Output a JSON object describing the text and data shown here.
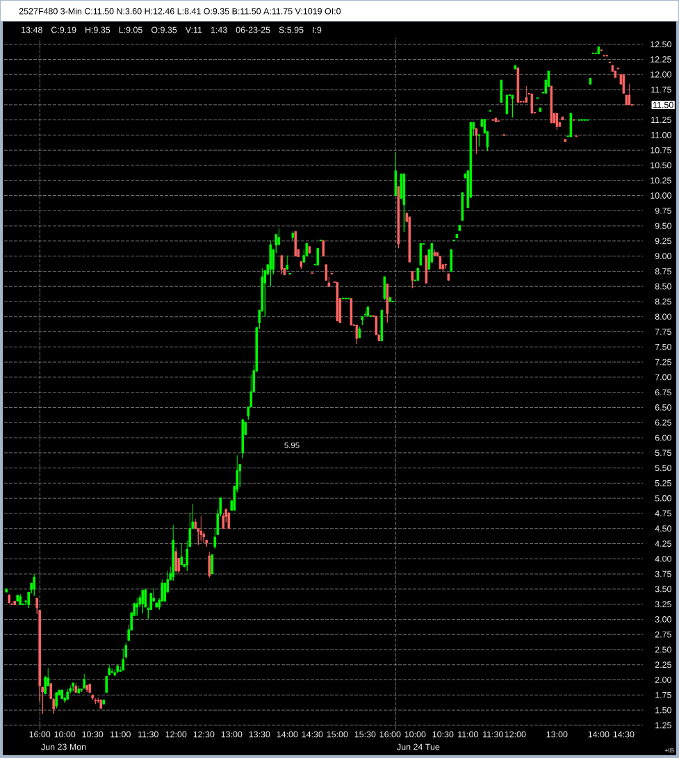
{
  "chart_data": {
    "type": "candlestick",
    "title": "2527F480 3-Min C:11.50 N:3.60 H:12.46 L:8.41 O:9.35 B:11.50 A:11.75 V:1019 OI:0",
    "subtitle": "13:48 C:9.19 H:9.35 L:9.05 O:9.35 V:11 1:43 06-23-25 S:5.95 I:9",
    "categories": [
      null,
      null,
      null,
      null,
      null,
      null,
      null,
      null,
      null,
      null,
      null,
      null,
      "16:00",
      null,
      null,
      null,
      null,
      null,
      null,
      null,
      null,
      "10:00",
      null,
      null,
      null,
      null,
      null,
      null,
      null,
      null,
      null,
      "10:30",
      null,
      null,
      null,
      null,
      null,
      null,
      null,
      null,
      null,
      "11:00",
      null,
      null,
      null,
      null,
      null,
      null,
      null,
      null,
      null,
      "11:30",
      null,
      null,
      null,
      null,
      null,
      null,
      null,
      null,
      null,
      "12:00",
      null,
      null,
      null,
      null,
      null,
      null,
      null,
      null,
      null,
      "12:30",
      null,
      null,
      null,
      null,
      null,
      null,
      null,
      null,
      null,
      "13:00",
      null,
      null,
      null,
      null,
      null,
      null,
      null,
      null,
      null,
      "13:30",
      null,
      null,
      null,
      null,
      null,
      null,
      null,
      null,
      null,
      "14:00",
      null,
      null,
      null,
      null,
      null,
      null,
      null,
      null,
      "14:30",
      null,
      null,
      null,
      null,
      null,
      null,
      null,
      null,
      "15:00",
      null,
      null,
      null,
      null,
      null,
      null,
      null,
      null,
      null,
      "15:30",
      null,
      null,
      null,
      null,
      null,
      null,
      null,
      null,
      "16:00",
      null,
      null,
      null,
      null,
      null,
      null,
      null,
      null,
      "10:00",
      null,
      null,
      null,
      null,
      null,
      null,
      null,
      null,
      null,
      "10:30",
      null,
      null,
      null,
      null,
      null,
      null,
      null,
      null,
      "11:00",
      null,
      null,
      null,
      null,
      null,
      null,
      null,
      null,
      "11:30",
      null,
      null,
      null,
      null,
      null,
      null,
      null,
      "12:00",
      null,
      null,
      null,
      null,
      null,
      null,
      null,
      null,
      null,
      null,
      null,
      null,
      null,
      null,
      "13:00",
      null,
      null,
      null,
      null,
      null,
      null,
      null,
      null,
      null,
      null,
      null,
      null,
      null,
      null,
      "14:00",
      null,
      null,
      null,
      null,
      null,
      null,
      null,
      null,
      "14:30",
      null,
      null,
      null
    ],
    "ohlc": [
      [
        3.45,
        3.5,
        3.45,
        3.5
      ],
      [
        3.4,
        3.42,
        3.27,
        3.27
      ],
      [
        3.25,
        3.25,
        3.25,
        3.25
      ],
      [
        3.3,
        3.3,
        3.24,
        3.24
      ],
      [
        3.3,
        3.4,
        3.3,
        3.4
      ],
      [
        3.24,
        3.42,
        3.24,
        3.38
      ],
      [
        3.25,
        3.25,
        3.25,
        3.25
      ],
      [
        3.3,
        3.3,
        3.24,
        3.3
      ],
      [
        3.24,
        3.45,
        3.19,
        3.45
      ],
      [
        3.49,
        3.6,
        3.43,
        3.6
      ],
      [
        3.5,
        3.75,
        3.39,
        3.7
      ],
      [
        3.35,
        3.35,
        3.09,
        3.19
      ],
      [
        3.15,
        3.15,
        1.64,
        1.9
      ],
      [
        1.88,
        1.88,
        1.44,
        1.8
      ],
      [
        1.77,
        2.06,
        1.77,
        2.05
      ],
      [
        1.9,
        2.2,
        1.9,
        2.03
      ],
      [
        1.94,
        1.94,
        1.69,
        1.69
      ],
      [
        1.68,
        1.7,
        1.44,
        1.52
      ],
      [
        1.57,
        1.79,
        1.53,
        1.79
      ],
      [
        1.75,
        1.84,
        1.75,
        1.83
      ],
      [
        1.69,
        1.84,
        1.69,
        1.83
      ],
      [
        1.66,
        1.72,
        1.62,
        1.7
      ],
      [
        1.68,
        1.85,
        1.68,
        1.8
      ],
      [
        1.81,
        1.91,
        1.78,
        1.86
      ],
      [
        1.9,
        1.95,
        1.81,
        1.95
      ],
      [
        1.9,
        1.95,
        1.79,
        1.79
      ],
      [
        1.78,
        1.9,
        1.78,
        1.85
      ],
      [
        1.83,
        1.85,
        1.8,
        1.85
      ],
      [
        1.86,
        2.1,
        1.86,
        2.01
      ],
      [
        1.91,
        1.91,
        1.8,
        1.84
      ],
      [
        1.93,
        1.93,
        1.79,
        1.79
      ],
      [
        1.75,
        1.75,
        1.67,
        1.7
      ],
      [
        1.66,
        1.7,
        1.6,
        1.66
      ],
      [
        1.66,
        1.71,
        1.62,
        1.66
      ],
      [
        1.67,
        1.67,
        1.53,
        1.53
      ],
      [
        1.6,
        1.67,
        1.6,
        1.67
      ],
      [
        1.79,
        2.06,
        1.79,
        2.06
      ],
      [
        2.08,
        2.24,
        2.08,
        2.19
      ],
      [
        2.13,
        2.19,
        2.11,
        2.13
      ],
      [
        2.08,
        2.18,
        2.06,
        2.12
      ],
      [
        2.14,
        2.25,
        2.11,
        2.23
      ],
      [
        2.14,
        2.22,
        2.14,
        2.16
      ],
      [
        2.16,
        2.51,
        2.16,
        2.34
      ],
      [
        2.38,
        2.62,
        2.35,
        2.57
      ],
      [
        2.65,
        2.91,
        2.65,
        2.83
      ],
      [
        2.82,
        3.11,
        2.82,
        3.11
      ],
      [
        3.06,
        3.28,
        3.06,
        3.26
      ],
      [
        3.2,
        3.35,
        3.06,
        3.26
      ],
      [
        3.25,
        3.41,
        3.2,
        3.36
      ],
      [
        3.26,
        3.48,
        3.1,
        3.48
      ],
      [
        3.2,
        3.51,
        3.2,
        3.49
      ],
      [
        3.16,
        3.21,
        3.01,
        3.18
      ],
      [
        3.16,
        3.43,
        3.16,
        3.43
      ],
      [
        3.3,
        3.51,
        3.3,
        3.35
      ],
      [
        3.2,
        3.28,
        3.2,
        3.27
      ],
      [
        3.2,
        3.35,
        3.16,
        3.32
      ],
      [
        3.3,
        3.66,
        3.3,
        3.6
      ],
      [
        3.3,
        3.6,
        3.3,
        3.6
      ],
      [
        3.45,
        3.8,
        3.45,
        3.66
      ],
      [
        3.65,
        3.87,
        3.65,
        3.76
      ],
      [
        3.7,
        4.56,
        3.64,
        4.31
      ],
      [
        4.12,
        4.19,
        3.78,
        3.8
      ],
      [
        4.01,
        4.01,
        3.76,
        3.8
      ],
      [
        3.9,
        4.26,
        3.9,
        4.03
      ],
      [
        3.87,
        3.91,
        3.86,
        3.91
      ],
      [
        3.9,
        4.3,
        3.8,
        4.16
      ],
      [
        4.2,
        4.76,
        4.2,
        4.5
      ],
      [
        4.5,
        4.91,
        4.5,
        4.61
      ],
      [
        4.61,
        4.66,
        4.5,
        4.5
      ],
      [
        4.5,
        4.5,
        4.23,
        4.45
      ],
      [
        4.46,
        4.71,
        4.3,
        4.4
      ],
      [
        4.41,
        4.46,
        4.26,
        4.36
      ],
      [
        4.31,
        4.31,
        4.2,
        4.26
      ],
      [
        4.05,
        4.12,
        3.69,
        3.72
      ],
      [
        3.75,
        4.07,
        3.75,
        4.07
      ],
      [
        4.2,
        4.51,
        4.17,
        4.36
      ],
      [
        4.4,
        4.82,
        4.4,
        4.74
      ],
      [
        4.74,
        5.01,
        4.7,
        5.01
      ],
      [
        4.71,
        4.76,
        4.5,
        4.5
      ],
      [
        4.82,
        4.82,
        4.6,
        4.7
      ],
      [
        4.76,
        4.76,
        4.5,
        4.5
      ],
      [
        4.8,
        4.96,
        4.8,
        4.96
      ],
      [
        4.8,
        5.2,
        4.8,
        5.2
      ],
      [
        5.15,
        5.71,
        5.1,
        5.46
      ],
      [
        5.45,
        5.56,
        5.19,
        5.56
      ],
      [
        5.75,
        6.3,
        5.66,
        6.3
      ],
      [
        6.05,
        6.26,
        6.05,
        6.26
      ],
      [
        6.36,
        6.51,
        6.3,
        6.51
      ],
      [
        6.51,
        7.04,
        6.51,
        6.76
      ],
      [
        6.76,
        7.21,
        6.76,
        7.11
      ],
      [
        7.1,
        7.82,
        7.1,
        7.82
      ],
      [
        7.9,
        8.11,
        7.8,
        8.11
      ],
      [
        8.09,
        8.8,
        8.09,
        8.66
      ],
      [
        8.55,
        8.76,
        8.0,
        8.76
      ],
      [
        8.7,
        8.86,
        8.7,
        8.86
      ],
      [
        8.78,
        9.26,
        8.5,
        9.19
      ],
      [
        8.78,
        9.11,
        8.7,
        9.11
      ],
      [
        9.18,
        9.36,
        9.05,
        9.36
      ],
      [
        9.19,
        9.46,
        9.19,
        9.31
      ],
      [
        9.01,
        9.01,
        8.7,
        8.78
      ],
      [
        8.8,
        8.8,
        8.69,
        8.69
      ],
      [
        8.78,
        9.01,
        8.78,
        8.85
      ],
      [
        8.71,
        8.71,
        8.71,
        8.71
      ],
      [
        9.31,
        9.41,
        9.26,
        9.38
      ],
      [
        9.41,
        9.41,
        9.0,
        9.0
      ],
      [
        9.11,
        9.11,
        8.99,
        8.99
      ],
      [
        8.91,
        8.91,
        8.79,
        8.83
      ],
      [
        8.9,
        9.11,
        8.9,
        9.01
      ],
      [
        9.0,
        9.21,
        9.0,
        9.21
      ],
      [
        9.16,
        9.16,
        9.05,
        9.05
      ],
      [
        8.72,
        8.72,
        8.72,
        8.72
      ],
      [
        8.86,
        8.86,
        8.86,
        8.86
      ],
      [
        8.85,
        9.13,
        8.85,
        9.13
      ],
      [
        9.26,
        9.26,
        9.26,
        9.26
      ],
      [
        9.26,
        9.26,
        9.0,
        9.0
      ],
      [
        8.86,
        8.86,
        8.6,
        8.6
      ],
      [
        8.56,
        8.66,
        8.5,
        8.5
      ],
      [
        8.71,
        8.71,
        8.71,
        8.71
      ],
      [
        8.57,
        8.57,
        8.57,
        8.57
      ],
      [
        8.57,
        8.57,
        7.93,
        7.93
      ],
      [
        8.3,
        8.3,
        7.9,
        7.9
      ],
      [
        8.3,
        8.3,
        8.3,
        8.3
      ],
      [
        8.3,
        8.3,
        8.3,
        8.3
      ],
      [
        8.3,
        8.3,
        8.3,
        8.3
      ],
      [
        8.3,
        8.3,
        7.86,
        7.86
      ],
      [
        7.86,
        7.86,
        7.86,
        7.86
      ],
      [
        7.86,
        7.86,
        7.55,
        7.64
      ],
      [
        7.65,
        7.84,
        7.65,
        7.8
      ],
      [
        7.95,
        8.0,
        7.86,
        8.0
      ],
      [
        8.03,
        8.09,
        8.03,
        8.03
      ],
      [
        8.01,
        8.16,
        8.01,
        8.16
      ],
      [
        8.01,
        8.01,
        8.01,
        8.01
      ],
      [
        8.01,
        8.01,
        8.01,
        8.01
      ],
      [
        8.01,
        8.01,
        7.7,
        7.7
      ],
      [
        7.7,
        7.7,
        7.6,
        7.6
      ],
      [
        7.6,
        8.11,
        7.6,
        8.11
      ],
      [
        8.3,
        8.66,
        8.28,
        8.66
      ],
      [
        8.54,
        8.54,
        7.9,
        8.05
      ],
      [
        8.25,
        8.32,
        8.25,
        8.32
      ],
      [
        8.25,
        8.25,
        8.25,
        8.25
      ],
      [
        10.0,
        10.71,
        10.0,
        10.41
      ],
      [
        10.15,
        10.15,
        9.13,
        9.2
      ],
      [
        9.95,
        10.36,
        9.95,
        10.36
      ],
      [
        9.85,
        10.36,
        9.4,
        10.36
      ],
      [
        9.71,
        9.71,
        9.57,
        9.57
      ],
      [
        9.65,
        9.65,
        8.9,
        8.9
      ],
      [
        8.75,
        8.75,
        8.47,
        8.6
      ],
      [
        8.6,
        8.6,
        8.6,
        8.6
      ],
      [
        8.6,
        8.8,
        8.6,
        8.8
      ],
      [
        8.85,
        9.21,
        8.85,
        9.21
      ],
      [
        9.2,
        9.2,
        9.2,
        9.2
      ],
      [
        9.01,
        9.01,
        8.55,
        8.55
      ],
      [
        8.78,
        9.11,
        8.78,
        9.11
      ],
      [
        8.9,
        9.21,
        8.9,
        9.21
      ],
      [
        9.06,
        9.11,
        9.01,
        9.01
      ],
      [
        9.06,
        9.06,
        9.0,
        9.0
      ],
      [
        9.0,
        9.0,
        8.79,
        8.79
      ],
      [
        8.86,
        8.86,
        8.75,
        8.79
      ],
      [
        8.86,
        8.86,
        8.79,
        8.86
      ],
      [
        8.71,
        8.71,
        8.6,
        8.6
      ],
      [
        8.75,
        9.11,
        8.75,
        9.11
      ],
      [
        9.26,
        9.26,
        9.26,
        9.26
      ],
      [
        9.3,
        9.36,
        9.3,
        9.36
      ],
      [
        9.42,
        9.51,
        9.42,
        9.51
      ],
      [
        9.59,
        10.05,
        9.59,
        10.05
      ],
      [
        10.29,
        10.36,
        10.29,
        10.36
      ],
      [
        9.8,
        10.41,
        9.8,
        10.41
      ],
      [
        9.97,
        11.21,
        9.97,
        11.21
      ],
      [
        11.1,
        11.21,
        10.99,
        11.21
      ],
      [
        11.11,
        11.11,
        10.69,
        10.99
      ],
      [
        11.0,
        11.0,
        10.81,
        11.0
      ],
      [
        11.14,
        11.26,
        11.14,
        11.26
      ],
      [
        11.03,
        11.26,
        11.03,
        11.26
      ],
      [
        10.8,
        11.06,
        10.74,
        11.06
      ],
      [
        11.4,
        11.4,
        11.4,
        11.4
      ],
      [
        11.25,
        11.25,
        11.25,
        11.25
      ],
      [
        11.28,
        11.28,
        11.22,
        11.22
      ],
      [
        11.23,
        11.23,
        11.23,
        11.23
      ],
      [
        11.54,
        11.91,
        11.54,
        11.91
      ],
      [
        11.0,
        11.0,
        11.0,
        11.0
      ],
      [
        11.35,
        11.66,
        11.35,
        11.66
      ],
      [
        11.66,
        11.66,
        11.66,
        11.66
      ],
      [
        11.6,
        11.66,
        11.29,
        11.66
      ],
      [
        12.09,
        12.15,
        12.09,
        12.15
      ],
      [
        12.11,
        12.11,
        11.54,
        11.54
      ],
      [
        11.55,
        11.55,
        11.55,
        11.55
      ],
      [
        11.55,
        11.55,
        11.55,
        11.55
      ],
      [
        11.62,
        11.81,
        11.54,
        11.54
      ],
      [
        11.68,
        11.68,
        11.68,
        11.68
      ],
      [
        11.68,
        11.68,
        11.36,
        11.36
      ],
      [
        11.37,
        11.37,
        11.37,
        11.37
      ],
      [
        11.61,
        11.61,
        11.61,
        11.61
      ],
      [
        11.39,
        11.45,
        11.39,
        11.45
      ],
      [
        11.7,
        11.7,
        11.7,
        11.7
      ],
      [
        11.69,
        11.91,
        11.69,
        11.91
      ],
      [
        11.8,
        12.06,
        11.8,
        12.06
      ],
      [
        11.81,
        11.81,
        11.2,
        11.2
      ],
      [
        11.36,
        11.36,
        11.2,
        11.2
      ],
      [
        11.36,
        11.36,
        11.09,
        11.14
      ],
      [
        11.21,
        11.21,
        11.14,
        11.14
      ],
      [
        11.3,
        11.3,
        11.25,
        11.25
      ],
      [
        10.93,
        10.93,
        10.89,
        10.89
      ],
      [
        10.98,
        10.98,
        10.98,
        10.98
      ],
      [
        10.97,
        11.36,
        10.97,
        11.36
      ],
      [
        11.25,
        11.25,
        11.25,
        11.25
      ],
      [
        10.98,
        10.98,
        10.98,
        10.98
      ],
      [
        11.25,
        11.25,
        11.25,
        11.25
      ],
      [
        11.25,
        11.25,
        11.25,
        11.25
      ],
      [
        11.25,
        11.25,
        11.25,
        11.25
      ],
      [
        11.25,
        11.25,
        11.25,
        11.25
      ],
      [
        11.84,
        11.94,
        11.84,
        11.94
      ],
      [
        12.35,
        12.35,
        12.35,
        12.35
      ],
      [
        12.35,
        12.35,
        12.35,
        12.35
      ],
      [
        12.34,
        12.46,
        12.34,
        12.46
      ],
      [
        12.4,
        12.4,
        12.4,
        12.4
      ],
      [
        12.31,
        12.31,
        12.31,
        12.31
      ],
      [
        12.31,
        12.31,
        12.31,
        12.31
      ],
      [
        12.2,
        12.2,
        12.2,
        12.2
      ],
      [
        12.15,
        12.15,
        12.05,
        12.05
      ],
      [
        12.06,
        12.06,
        11.95,
        11.95
      ],
      [
        12.1,
        12.1,
        12.1,
        12.1
      ],
      [
        12.0,
        12.0,
        11.84,
        11.84
      ],
      [
        12.0,
        12.0,
        11.69,
        11.69
      ],
      [
        11.66,
        11.66,
        11.5,
        11.5
      ],
      [
        11.66,
        11.85,
        11.5,
        11.5
      ],
      [
        11.5,
        11.5,
        11.5,
        11.5
      ]
    ],
    "colors": [
      "#00ff00",
      "#ff6666",
      "#ff6666",
      "#ff6666",
      "#00ff00",
      "#00ff00",
      "#00ff00",
      "#00ff00",
      "#00ff00",
      "#00ff00",
      "#00ff00",
      "#ff6666",
      "#ff6666",
      "#ff6666",
      "#00ff00",
      "#00ff00",
      "#ff6666",
      "#ff6666",
      "#00ff00",
      "#00ff00",
      "#00ff00",
      "#00ff00",
      "#00ff00",
      "#00ff00",
      "#00ff00",
      "#ff6666",
      "#00ff00",
      "#00ff00",
      "#00ff00",
      "#ff6666",
      "#ff6666",
      "#ff6666",
      "#ff6666",
      "#ff6666",
      "#ff6666",
      "#00ff00",
      "#00ff00",
      "#00ff00",
      "#00ff00",
      "#00ff00",
      "#00ff00",
      "#00ff00",
      "#00ff00",
      "#00ff00",
      "#00ff00",
      "#00ff00",
      "#00ff00",
      "#00ff00",
      "#00ff00",
      "#00ff00",
      "#00ff00",
      "#00ff00",
      "#00ff00",
      "#00ff00",
      "#00ff00",
      "#00ff00",
      "#00ff00",
      "#00ff00",
      "#00ff00",
      "#00ff00",
      "#00ff00",
      "#ff6666",
      "#ff6666",
      "#00ff00",
      "#00ff00",
      "#00ff00",
      "#00ff00",
      "#00ff00",
      "#ff6666",
      "#ff6666",
      "#ff6666",
      "#ff6666",
      "#ff6666",
      "#ff6666",
      "#00ff00",
      "#00ff00",
      "#00ff00",
      "#00ff00",
      "#ff6666",
      "#ff6666",
      "#ff6666",
      "#00ff00",
      "#00ff00",
      "#00ff00",
      "#00ff00",
      "#00ff00",
      "#00ff00",
      "#00ff00",
      "#00ff00",
      "#00ff00",
      "#00ff00",
      "#00ff00",
      "#00ff00",
      "#00ff00",
      "#00ff00",
      "#00ff00",
      "#00ff00",
      "#00ff00",
      "#00ff00",
      "#ff6666",
      "#ff6666",
      "#00ff00",
      "#00ff00",
      "#00ff00",
      "#ff6666",
      "#ff6666",
      "#ff6666",
      "#00ff00",
      "#00ff00",
      "#ff6666",
      "#ff6666",
      "#00ff00",
      "#00ff00",
      "#00ff00",
      "#ff6666",
      "#ff6666",
      "#ff6666",
      "#ff6666",
      "#ff6666",
      "#ff6666",
      "#ff6666",
      "#00ff00",
      "#00ff00",
      "#00ff00",
      "#ff6666",
      "#ff6666",
      "#ff6666",
      "#00ff00",
      "#00ff00",
      "#00ff00",
      "#00ff00",
      "#00ff00",
      "#ff6666",
      "#ff6666",
      "#ff6666",
      "#00ff00",
      "#00ff00",
      "#ff6666",
      "#00ff00",
      "#00ff00",
      "#00ff00",
      "#ff6666",
      "#00ff00",
      "#00ff00",
      "#ff6666",
      "#ff6666",
      "#ff6666",
      "#00ff00",
      "#00ff00",
      "#00ff00",
      "#00ff00",
      "#ff6666",
      "#00ff00",
      "#00ff00",
      "#ff6666",
      "#ff6666",
      "#ff6666",
      "#ff6666",
      "#ff6666",
      "#ff6666",
      "#00ff00",
      "#00ff00",
      "#00ff00",
      "#00ff00",
      "#00ff00",
      "#00ff00",
      "#00ff00",
      "#00ff00",
      "#00ff00",
      "#ff6666",
      "#00ff00",
      "#00ff00",
      "#00ff00",
      "#00ff00",
      "#00ff00",
      "#ff6666",
      "#ff6666",
      "#ff6666",
      "#00ff00",
      "#ff6666",
      "#00ff00",
      "#00ff00",
      "#00ff00",
      "#00ff00",
      "#ff6666",
      "#ff6666",
      "#ff6666",
      "#ff6666",
      "#ff6666",
      "#ff6666",
      "#ff6666",
      "#00ff00",
      "#00ff00",
      "#00ff00",
      "#00ff00",
      "#00ff00",
      "#ff6666",
      "#ff6666",
      "#ff6666",
      "#ff6666",
      "#ff6666",
      "#ff6666",
      "#00ff00",
      "#00ff00",
      "#ff6666",
      "#ff6666",
      "#00ff00",
      "#00ff00",
      "#00ff00",
      "#00ff00",
      "#00ff00",
      "#00ff00",
      "#00ff00",
      "#00ff00",
      "#ff6666",
      "#ff6666",
      "#ff6666",
      "#ff6666",
      "#ff6666",
      "#ff6666",
      "#ff6666",
      "#ff6666",
      "#ff6666",
      "#ff6666",
      "#ff6666",
      "#ff6666"
    ],
    "ylim": [
      1.18,
      12.6
    ],
    "yticks": [
      {
        "value": 1.25,
        "label": "1.25"
      },
      {
        "value": 1.5,
        "label": "1.50"
      },
      {
        "value": 1.75,
        "label": "1.75"
      },
      {
        "value": 2,
        "label": "2.00"
      },
      {
        "value": 2.25,
        "label": "2.25"
      },
      {
        "value": 2.5,
        "label": "2.50"
      },
      {
        "value": 2.75,
        "label": "2.75"
      },
      {
        "value": 3,
        "label": "3.00"
      },
      {
        "value": 3.25,
        "label": "3.25"
      },
      {
        "value": 3.5,
        "label": "3.50"
      },
      {
        "value": 3.75,
        "label": "3.75"
      },
      {
        "value": 4,
        "label": "4.00"
      },
      {
        "value": 4.25,
        "label": "4.25"
      },
      {
        "value": 4.5,
        "label": "4.50"
      },
      {
        "value": 4.75,
        "label": "4.75"
      },
      {
        "value": 5,
        "label": "5.00"
      },
      {
        "value": 5.25,
        "label": "5.25"
      },
      {
        "value": 5.5,
        "label": "5.50"
      },
      {
        "value": 5.75,
        "label": "5.75"
      },
      {
        "value": 6,
        "label": "6.00"
      },
      {
        "value": 6.25,
        "label": "6.25"
      },
      {
        "value": 6.5,
        "label": "6.50"
      },
      {
        "value": 6.75,
        "label": "6.75"
      },
      {
        "value": 7,
        "label": "7.00"
      },
      {
        "value": 7.25,
        "label": "7.25"
      },
      {
        "value": 7.5,
        "label": "7.50"
      },
      {
        "value": 7.75,
        "label": "7.75"
      },
      {
        "value": 8,
        "label": "8.00"
      },
      {
        "value": 8.25,
        "label": "8.25"
      },
      {
        "value": 8.5,
        "label": "8.50"
      },
      {
        "value": 8.75,
        "label": "8.75"
      },
      {
        "value": 9,
        "label": "9.00"
      },
      {
        "value": 9.25,
        "label": "9.25"
      },
      {
        "value": 9.5,
        "label": "9.50"
      },
      {
        "value": 9.75,
        "label": "9.75"
      },
      {
        "value": 10,
        "label": "10.00"
      },
      {
        "value": 10.25,
        "label": "10.25"
      },
      {
        "value": 10.5,
        "label": "10.50"
      },
      {
        "value": 10.75,
        "label": "10.75"
      },
      {
        "value": 11,
        "label": "11.00"
      },
      {
        "value": 11.25,
        "label": "11.25"
      },
      {
        "value": 11.5,
        "label": null
      },
      {
        "value": 11.75,
        "label": "11.75"
      },
      {
        "value": 12,
        "label": "12.00"
      },
      {
        "value": 12.25,
        "label": "12.25"
      },
      {
        "value": 12.5,
        "label": "12.50"
      }
    ],
    "grid": "y",
    "annotations": [
      "11.50",
      "5.95",
      "Jun 23 Mon",
      "Jun 24 Tue",
      "+IB"
    ]
  }
}
